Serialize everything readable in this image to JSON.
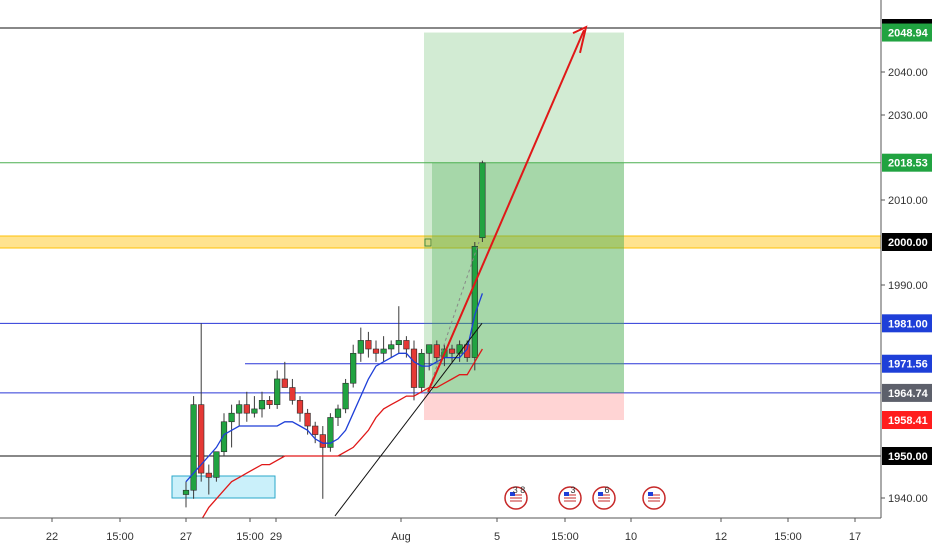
{
  "colors": {
    "bull": "#26a69a",
    "bull_candle": "#21a341",
    "bear": "#e53935",
    "ma_fast": "#1e3fd8",
    "ma_slow": "#e01818",
    "profit_zone": "#4caf50",
    "loss_zone": "#ff5252",
    "horizontal_blue": "#2a37d8",
    "horizontal_black": "#111111",
    "resistance_band": "#ffc107",
    "arrow": "#e01818",
    "consolidation_box": "#9ee3f5"
  },
  "chart_data": {
    "type": "candlestick",
    "ylim": [
      1936,
      2053
    ],
    "x_ticks": [
      "22",
      "15:00",
      "27",
      "15:00",
      "29",
      "Aug",
      "5",
      "15:00",
      "10",
      "12",
      "15:00",
      "17"
    ],
    "y_ticks": [
      "1940.00",
      "1990.00",
      "2010.00",
      "2030.00",
      "2040.00"
    ],
    "ohlc": [
      [
        1941,
        1944,
        1938,
        1942
      ],
      [
        1942,
        1964,
        1940,
        1962
      ],
      [
        1962,
        1981,
        1944,
        1946
      ],
      [
        1946,
        1948,
        1941,
        1945
      ],
      [
        1945,
        1951,
        1944,
        1951
      ],
      [
        1951,
        1960,
        1950,
        1958
      ],
      [
        1958,
        1962,
        1952,
        1960
      ],
      [
        1960,
        1963,
        1957,
        1962
      ],
      [
        1962,
        1965,
        1958,
        1960
      ],
      [
        1960,
        1964,
        1959,
        1961
      ],
      [
        1961,
        1965,
        1959,
        1963
      ],
      [
        1963,
        1964,
        1961,
        1962
      ],
      [
        1962,
        1970,
        1961,
        1968
      ],
      [
        1968,
        1972,
        1966,
        1966
      ],
      [
        1966,
        1968,
        1962,
        1963
      ],
      [
        1963,
        1964,
        1958,
        1960
      ],
      [
        1960,
        1961,
        1955,
        1957
      ],
      [
        1957,
        1958,
        1953,
        1955
      ],
      [
        1955,
        1957,
        1940,
        1952
      ],
      [
        1952,
        1960,
        1951,
        1959
      ],
      [
        1959,
        1962,
        1957,
        1961
      ],
      [
        1961,
        1968,
        1960,
        1967
      ],
      [
        1967,
        1976,
        1966,
        1974
      ],
      [
        1974,
        1980,
        1972,
        1977
      ],
      [
        1977,
        1979,
        1973,
        1975
      ],
      [
        1975,
        1977,
        1972,
        1974
      ],
      [
        1974,
        1978,
        1972,
        1975
      ],
      [
        1975,
        1977,
        1973,
        1976
      ],
      [
        1976,
        1985,
        1974,
        1977
      ],
      [
        1977,
        1978,
        1973,
        1975
      ],
      [
        1975,
        1977,
        1963,
        1966
      ],
      [
        1966,
        1975,
        1965,
        1974
      ],
      [
        1974,
        1976,
        1970,
        1976
      ],
      [
        1976,
        1977,
        1972,
        1973
      ],
      [
        1973,
        1976,
        1971,
        1975
      ],
      [
        1975,
        1976,
        1972,
        1974
      ],
      [
        1974,
        1977,
        1972,
        1976
      ],
      [
        1976,
        1977,
        1972,
        1973
      ],
      [
        1973,
        2000,
        1970,
        1999
      ],
      [
        2001,
        2019,
        2000,
        2018.5
      ]
    ],
    "ma_fast": [
      1944,
      1946,
      1948,
      1950,
      1952,
      1955,
      1956,
      1957,
      1957,
      1957,
      1957,
      1957,
      1957,
      1958,
      1958,
      1957,
      1956,
      1954,
      1953,
      1953,
      1954,
      1956,
      1960,
      1964,
      1968,
      1971,
      1972,
      1973,
      1974,
      1974,
      1972,
      1971,
      1971,
      1972,
      1973,
      1973,
      1973,
      1975,
      1983,
      1988
    ],
    "ma_slow": [
      1930,
      1932,
      1935,
      1938,
      1940,
      1942,
      1944,
      1945,
      1946,
      1947,
      1948,
      1948,
      1949,
      1950,
      1950,
      1950,
      1950,
      1950,
      1950,
      1950,
      1950,
      1951,
      1952,
      1954,
      1956,
      1959,
      1961,
      1962,
      1963,
      1964,
      1964,
      1965,
      1966,
      1966,
      1967,
      1968,
      1969,
      1969,
      1972,
      1975
    ],
    "levels": [
      {
        "price": 2050,
        "label": "2050.00",
        "kind": "black",
        "badge_bg": "#000000",
        "badge_fg": "#ffffff"
      },
      {
        "price": 2048.94,
        "label": "2048.94",
        "kind": "badge",
        "badge_bg": "#21a341",
        "badge_fg": "#ffffff"
      },
      {
        "price": 2018.53,
        "label": "2018.53",
        "kind": "green",
        "badge_bg": "#21a341",
        "badge_fg": "#ffffff"
      },
      {
        "price": 2000,
        "label": "2000.00",
        "kind": "band",
        "badge_bg": "#000000",
        "badge_fg": "#ffffff"
      },
      {
        "price": 1981,
        "label": "1981.00",
        "kind": "blue",
        "badge_bg": "#1e3fd8",
        "badge_fg": "#ffffff"
      },
      {
        "price": 1971.56,
        "label": "1971.56",
        "kind": "blue-short",
        "badge_bg": "#1e3fd8",
        "badge_fg": "#ffffff"
      },
      {
        "price": 1964.74,
        "label": "1964.74",
        "kind": "blue",
        "badge_bg": "#5d606b",
        "badge_fg": "#ffffff"
      },
      {
        "price": 1958.41,
        "label": "1958.41",
        "kind": "badge",
        "badge_bg": "#ff1d1d",
        "badge_fg": "#ffffff"
      },
      {
        "price": 1950,
        "label": "1950.00",
        "kind": "black",
        "badge_bg": "#000000",
        "badge_fg": "#ffffff"
      }
    ],
    "trade": {
      "entry": 1964.74,
      "target": 2048.94,
      "stop": 1958.41,
      "current": 2018.53
    },
    "events": [
      {
        "label": "3 8"
      },
      {
        "label": "3"
      },
      {
        "label": "6"
      },
      {
        "label": ""
      }
    ]
  }
}
